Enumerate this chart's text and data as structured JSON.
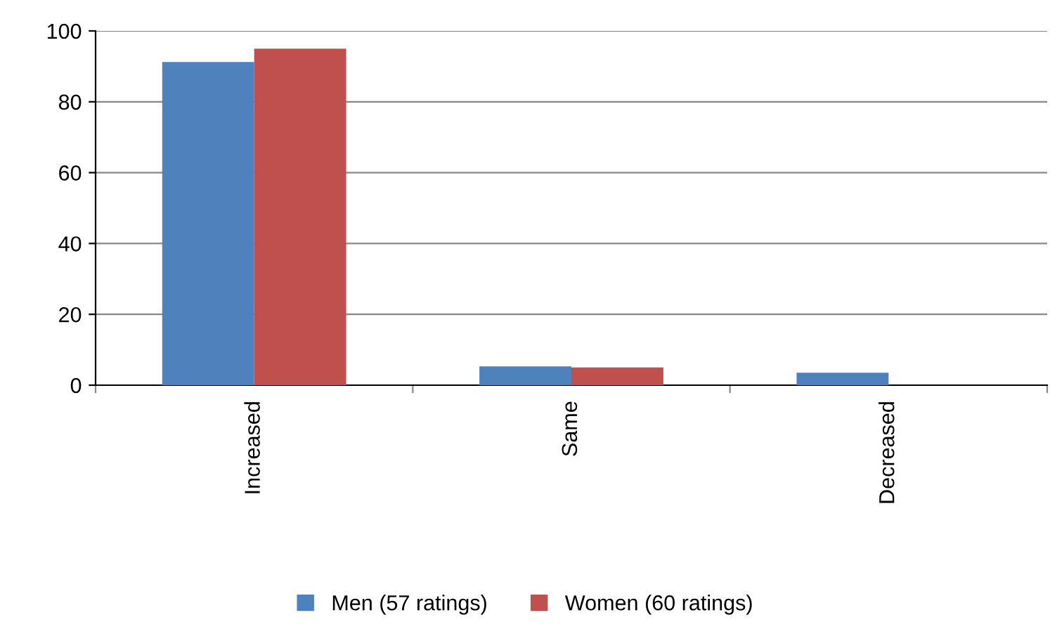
{
  "chart_data": {
    "type": "bar",
    "categories": [
      "Increased",
      "Same",
      "Decreased"
    ],
    "series": [
      {
        "name": "Men (57 ratings)",
        "color": "#4f81bd",
        "values": [
          91.2,
          5.3,
          3.5
        ]
      },
      {
        "name": "Women (60 ratings)",
        "color": "#c0504d",
        "values": [
          95,
          5,
          0
        ]
      }
    ],
    "ylim": [
      0,
      100
    ],
    "yticks": [
      0,
      20,
      40,
      60,
      80,
      100
    ],
    "grid": "y",
    "legend": "bottom"
  }
}
